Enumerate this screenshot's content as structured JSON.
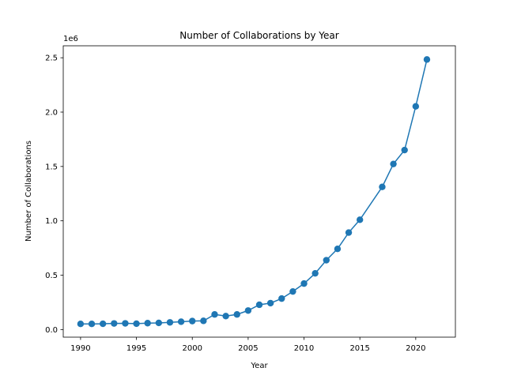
{
  "chart_data": {
    "type": "line",
    "title": "Number of Collaborations by Year",
    "xlabel": "Year",
    "ylabel": "Number of Collaborations",
    "y_offset_label": "1e6",
    "xlim": [
      1988.45,
      2023.55
    ],
    "ylim": [
      -70000,
      2610000
    ],
    "x_ticks": [
      1990,
      1995,
      2000,
      2005,
      2010,
      2015,
      2020
    ],
    "y_ticks": [
      0,
      500000,
      1000000,
      1500000,
      2000000,
      2500000
    ],
    "y_tick_labels": [
      "0.0",
      "0.5",
      "1.0",
      "1.5",
      "2.0",
      "2.5"
    ],
    "grid": false,
    "marker": "circle",
    "color": "#1f77b4",
    "series": [
      {
        "x": [
          1990,
          1991,
          1992,
          1993,
          1994,
          1995,
          1996,
          1997,
          1998,
          1999,
          2000,
          2001,
          2002,
          2003,
          2004,
          2005,
          2006,
          2007,
          2008,
          2009,
          2010,
          2011,
          2012,
          2013,
          2014,
          2015,
          2017,
          2018,
          2019,
          2020,
          2021
        ],
        "values": [
          52000,
          52000,
          53000,
          56000,
          57000,
          54000,
          59000,
          61000,
          66000,
          72000,
          78000,
          80000,
          139000,
          124000,
          139000,
          175000,
          228000,
          243000,
          285000,
          350000,
          423000,
          517000,
          638000,
          742000,
          892000,
          1010000,
          1312000,
          1523000,
          1651000,
          2053000,
          2484000
        ]
      }
    ]
  }
}
